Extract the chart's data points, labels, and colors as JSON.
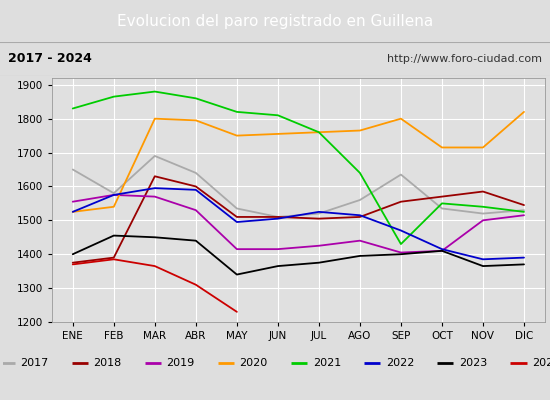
{
  "title": "Evolucion del paro registrado en Guillena",
  "subtitle_left": "2017 - 2024",
  "subtitle_right": "http://www.foro-ciudad.com",
  "x_labels": [
    "ENE",
    "FEB",
    "MAR",
    "ABR",
    "MAY",
    "JUN",
    "JUL",
    "AGO",
    "SEP",
    "OCT",
    "NOV",
    "DIC"
  ],
  "ylim": [
    1200,
    1920
  ],
  "yticks": [
    1200,
    1300,
    1400,
    1500,
    1600,
    1700,
    1800,
    1900
  ],
  "series": {
    "2017": {
      "color": "#aaaaaa",
      "data": [
        1650,
        1580,
        1690,
        1640,
        1535,
        1510,
        1520,
        1560,
        1635,
        1535,
        1520,
        1530
      ]
    },
    "2018": {
      "color": "#990000",
      "data": [
        1375,
        1390,
        1630,
        1600,
        1510,
        1510,
        1505,
        1510,
        1555,
        1570,
        1585,
        1545
      ]
    },
    "2019": {
      "color": "#aa00aa",
      "data": [
        1555,
        1575,
        1570,
        1530,
        1415,
        1415,
        1425,
        1440,
        1405,
        1410,
        1500,
        1515
      ]
    },
    "2020": {
      "color": "#ff9900",
      "data": [
        1525,
        1540,
        1800,
        1795,
        1750,
        1755,
        1760,
        1765,
        1800,
        1715,
        1715,
        1820
      ]
    },
    "2021": {
      "color": "#00cc00",
      "data": [
        1830,
        1865,
        1880,
        1860,
        1820,
        1810,
        1760,
        1640,
        1430,
        1550,
        1540,
        1525
      ]
    },
    "2022": {
      "color": "#0000cc",
      "data": [
        1525,
        1575,
        1595,
        1590,
        1495,
        1505,
        1525,
        1515,
        1470,
        1415,
        1385,
        1390
      ]
    },
    "2023": {
      "color": "#000000",
      "data": [
        1400,
        1455,
        1450,
        1440,
        1340,
        1365,
        1375,
        1395,
        1400,
        1410,
        1365,
        1370
      ]
    },
    "2024": {
      "color": "#cc0000",
      "data": [
        1370,
        1385,
        1365,
        1310,
        1230,
        null,
        null,
        null,
        null,
        null,
        null,
        null
      ]
    }
  },
  "background_color": "#dedede",
  "plot_bg_color": "#e0e0e0",
  "title_bg_color": "#4d8fc4",
  "title_color": "#ffffff",
  "grid_color": "#ffffff",
  "subtitle_bg": "#e8e8e8",
  "legend_bg": "#f0f0f0"
}
